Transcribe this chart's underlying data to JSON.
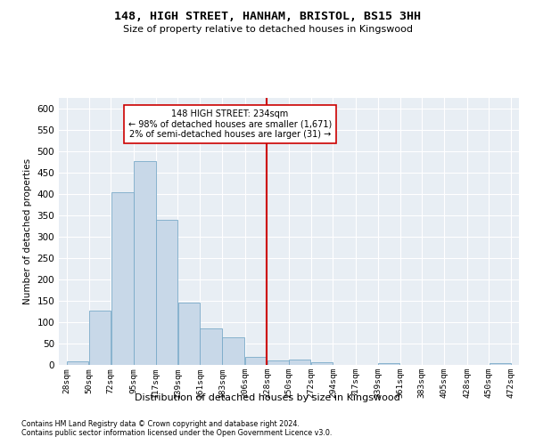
{
  "title": "148, HIGH STREET, HANHAM, BRISTOL, BS15 3HH",
  "subtitle": "Size of property relative to detached houses in Kingswood",
  "xlabel": "Distribution of detached houses by size in Kingswood",
  "ylabel": "Number of detached properties",
  "bar_color": "#c8d8e8",
  "bar_edge_color": "#7aaac8",
  "background_color": "#e8eef4",
  "grid_color": "#ffffff",
  "vline_x": 228,
  "vline_color": "#cc0000",
  "annotation_text": "148 HIGH STREET: 234sqm\n← 98% of detached houses are smaller (1,671)\n2% of semi-detached houses are larger (31) →",
  "annotation_box_color": "#cc0000",
  "footer1": "Contains HM Land Registry data © Crown copyright and database right 2024.",
  "footer2": "Contains public sector information licensed under the Open Government Licence v3.0.",
  "bin_edges": [
    28,
    50,
    72,
    95,
    117,
    139,
    161,
    183,
    206,
    228,
    250,
    272,
    294,
    317,
    339,
    361,
    383,
    405,
    428,
    450,
    472
  ],
  "bar_heights": [
    8,
    128,
    405,
    477,
    340,
    145,
    85,
    65,
    18,
    10,
    13,
    6,
    0,
    0,
    4,
    0,
    0,
    0,
    0,
    4
  ],
  "ylim": [
    0,
    625
  ],
  "yticks": [
    0,
    50,
    100,
    150,
    200,
    250,
    300,
    350,
    400,
    450,
    500,
    550,
    600
  ]
}
